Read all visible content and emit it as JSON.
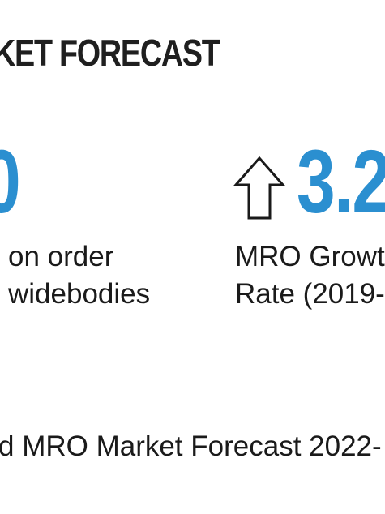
{
  "heading": "KET FORECAST",
  "stats": {
    "left": {
      "value": "0",
      "caption_line1": "on order",
      "caption_line2": "widebodies"
    },
    "right": {
      "value": "3.2",
      "caption_line1": "MRO Growt",
      "caption_line2": "Rate (2019-"
    }
  },
  "footer": "d MRO Market Forecast 2022-",
  "colors": {
    "accent": "#2b8fd0",
    "text": "#1a1a1a",
    "background": "#ffffff"
  },
  "icons": {
    "growth_arrow": "up-arrow-outline-icon"
  }
}
